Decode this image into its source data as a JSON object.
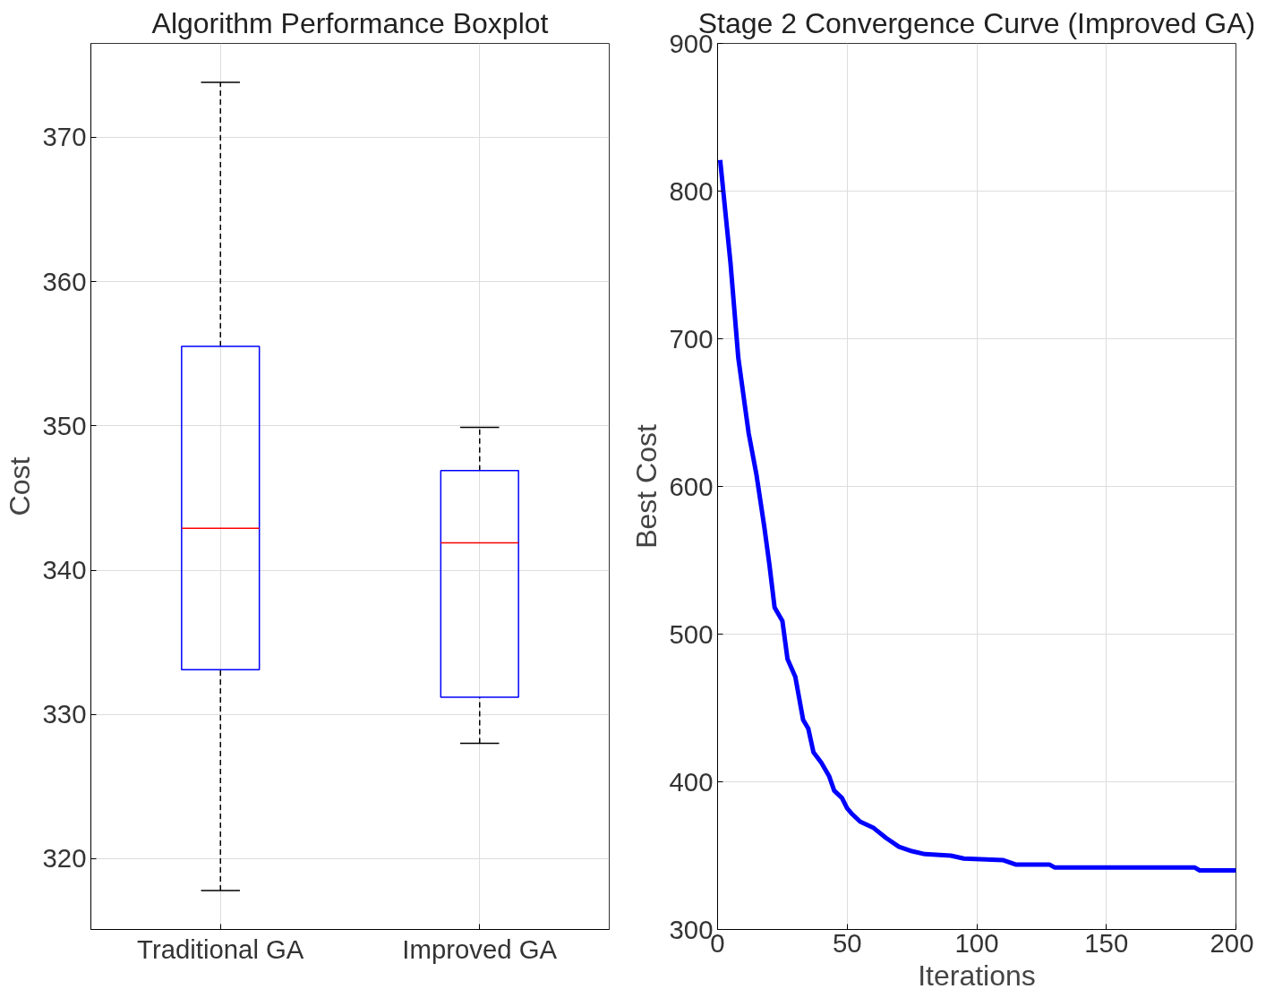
{
  "chart_data": [
    {
      "type": "box",
      "title": "Algorithm Performance Boxplot",
      "ylabel": "Cost",
      "categories": [
        "Traditional GA",
        "Improved GA"
      ],
      "ylim": [
        315.1,
        376.5
      ],
      "yticks": [
        320,
        330,
        340,
        350,
        360,
        370
      ],
      "grid": true,
      "series": [
        {
          "color": "#0000ff",
          "boxes": [
            {
              "low": 317.8,
              "q1": 333.1,
              "median": 342.9,
              "q3": 355.5,
              "high": 373.8
            },
            {
              "low": 328.0,
              "q1": 331.2,
              "median": 341.9,
              "q3": 346.9,
              "high": 349.9
            }
          ]
        }
      ]
    },
    {
      "type": "line",
      "title": "Stage 2 Convergence Curve (Improved GA)",
      "xlabel": "Iterations",
      "ylabel": "Best Cost",
      "xlim": [
        0,
        200
      ],
      "xticks": [
        0,
        50,
        100,
        150,
        200
      ],
      "ylim": [
        300,
        900
      ],
      "yticks": [
        300,
        400,
        500,
        600,
        700,
        800,
        900
      ],
      "grid": true,
      "series": [
        {
          "color": "#0000ff",
          "x": [
            1,
            5,
            8,
            12,
            15,
            18,
            20,
            22,
            25,
            27,
            30,
            33,
            35,
            37,
            40,
            43,
            45,
            48,
            50,
            52,
            55,
            60,
            65,
            70,
            75,
            80,
            90,
            95,
            110,
            115,
            128,
            130,
            184,
            186,
            200
          ],
          "values": [
            821,
            751,
            687,
            636,
            608,
            573,
            547,
            518,
            509,
            483,
            471,
            442,
            436,
            420,
            413,
            404,
            394,
            389,
            382,
            378,
            373,
            369,
            362,
            356,
            353,
            351,
            350,
            348,
            347,
            344,
            344,
            342,
            342,
            340,
            340
          ]
        }
      ]
    }
  ]
}
